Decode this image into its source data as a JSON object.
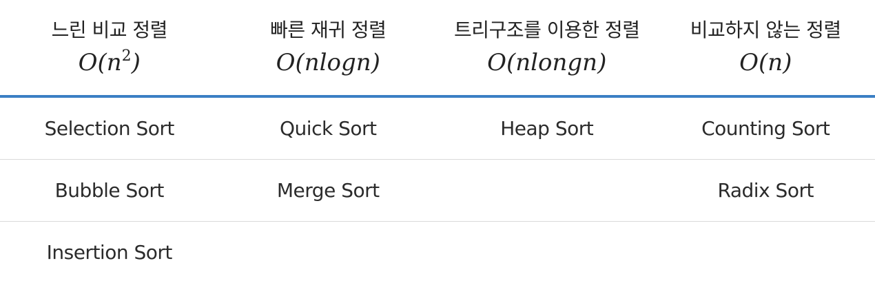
{
  "columns": [
    {
      "title": "느린 비교 정렬",
      "complexity_base": "O(n",
      "complexity_sup": "2",
      "complexity_end": ")"
    },
    {
      "title": "빠른 재귀 정렬",
      "complexity_base": "O(nlogn)",
      "complexity_sup": "",
      "complexity_end": ""
    },
    {
      "title": "트리구조를 이용한 정렬",
      "complexity_base": "O(nlongn)",
      "complexity_sup": "",
      "complexity_end": ""
    },
    {
      "title": "비교하지 않는 정렬",
      "complexity_base": "O(n)",
      "complexity_sup": "",
      "complexity_end": ""
    }
  ],
  "rows": [
    [
      "Selection Sort",
      "Quick Sort",
      "Heap Sort",
      "Counting Sort"
    ],
    [
      "Bubble Sort",
      "Merge Sort",
      "",
      "Radix Sort"
    ],
    [
      "Insertion Sort",
      "",
      "",
      ""
    ]
  ],
  "colors": {
    "header_rule": "#3b7fc4",
    "row_rule": "#d9d9d9",
    "text": "#2b2b2b"
  }
}
